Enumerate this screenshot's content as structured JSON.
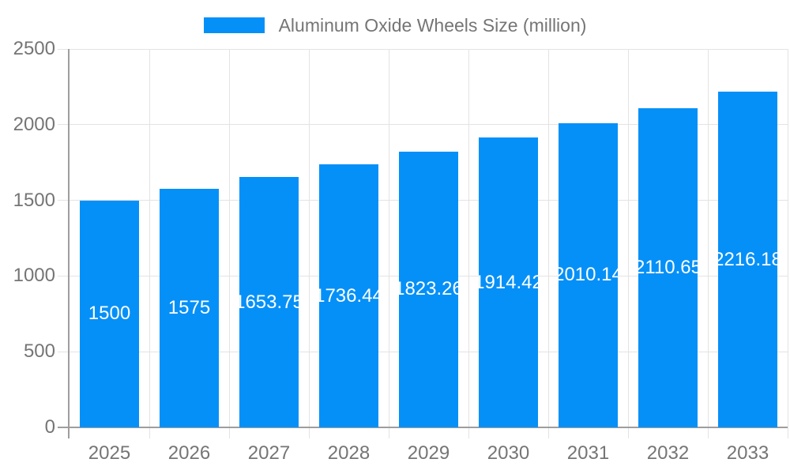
{
  "chart_data": {
    "type": "bar",
    "legend_entries": [
      "Aluminum Oxide Wheels Size (million)"
    ],
    "legend_position": "top",
    "categories": [
      "2025",
      "2026",
      "2027",
      "2028",
      "2029",
      "2030",
      "2031",
      "2032",
      "2033"
    ],
    "series": [
      {
        "name": "Aluminum Oxide Wheels Size (million)",
        "values": [
          1500,
          1575,
          1653.75,
          1736.44,
          1823.26,
          1914.42,
          2010.14,
          2110.65,
          2216.18
        ]
      }
    ],
    "value_labels": [
      "1500",
      "1575",
      "1653.75",
      "1736.44",
      "1823.26",
      "1914.42",
      "2010.14",
      "2110.65",
      "2216.18"
    ],
    "xlabel": "",
    "ylabel": "",
    "ylim": [
      0,
      2500
    ],
    "y_ticks": [
      0,
      500,
      1000,
      1500,
      2000,
      2500
    ],
    "grid": true,
    "colors": {
      "bar": "#0590f8",
      "grid": "#e3e3e3",
      "axis": "#9e9e9e",
      "tick_label": "#757575",
      "data_label": "#ffffff",
      "background": "#ffffff"
    }
  }
}
